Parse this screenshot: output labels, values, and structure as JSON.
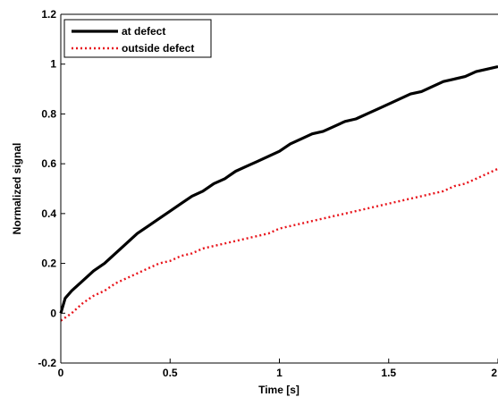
{
  "chart_data": {
    "type": "line",
    "title": "",
    "xlabel": "Time [s]",
    "ylabel": "Normalized signal",
    "xlim": [
      0,
      2
    ],
    "ylim": [
      -0.2,
      1.2
    ],
    "xticks": [
      0,
      0.5,
      1,
      1.5,
      2
    ],
    "xtick_labels": [
      "0",
      "0.5",
      "1",
      "1.5",
      "2"
    ],
    "yticks": [
      -0.2,
      0,
      0.2,
      0.4,
      0.6,
      0.8,
      1,
      1.2
    ],
    "ytick_labels": [
      "-0.2",
      "0",
      "0.2",
      "0.4",
      "0.6",
      "0.8",
      "1",
      "1.2"
    ],
    "grid": false,
    "legend_position": "top-left",
    "series": [
      {
        "name": "at defect",
        "color": "#000000",
        "style": "solid",
        "x": [
          0,
          0.02,
          0.05,
          0.1,
          0.15,
          0.2,
          0.25,
          0.3,
          0.35,
          0.4,
          0.45,
          0.5,
          0.55,
          0.6,
          0.65,
          0.7,
          0.75,
          0.8,
          0.85,
          0.9,
          0.95,
          1.0,
          1.05,
          1.1,
          1.15,
          1.2,
          1.25,
          1.3,
          1.35,
          1.4,
          1.45,
          1.5,
          1.55,
          1.6,
          1.65,
          1.7,
          1.75,
          1.8,
          1.85,
          1.9,
          1.95,
          2.0
        ],
        "y": [
          0,
          0.06,
          0.09,
          0.13,
          0.17,
          0.2,
          0.24,
          0.28,
          0.32,
          0.35,
          0.38,
          0.41,
          0.44,
          0.47,
          0.49,
          0.52,
          0.54,
          0.57,
          0.59,
          0.61,
          0.63,
          0.65,
          0.68,
          0.7,
          0.72,
          0.73,
          0.75,
          0.77,
          0.78,
          0.8,
          0.82,
          0.84,
          0.86,
          0.88,
          0.89,
          0.91,
          0.93,
          0.94,
          0.95,
          0.97,
          0.98,
          0.99
        ]
      },
      {
        "name": "outside defect",
        "color": "#e8141b",
        "style": "dotted",
        "x": [
          0,
          0.05,
          0.1,
          0.15,
          0.2,
          0.25,
          0.3,
          0.35,
          0.4,
          0.45,
          0.5,
          0.55,
          0.6,
          0.65,
          0.7,
          0.75,
          0.8,
          0.85,
          0.9,
          0.95,
          1.0,
          1.05,
          1.1,
          1.15,
          1.2,
          1.25,
          1.3,
          1.35,
          1.4,
          1.45,
          1.5,
          1.55,
          1.6,
          1.65,
          1.7,
          1.75,
          1.8,
          1.85,
          1.9,
          1.95,
          2.0
        ],
        "y": [
          -0.03,
          0.0,
          0.04,
          0.07,
          0.09,
          0.12,
          0.14,
          0.16,
          0.18,
          0.2,
          0.21,
          0.23,
          0.24,
          0.26,
          0.27,
          0.28,
          0.29,
          0.3,
          0.31,
          0.32,
          0.34,
          0.35,
          0.36,
          0.37,
          0.38,
          0.39,
          0.4,
          0.41,
          0.42,
          0.43,
          0.44,
          0.45,
          0.46,
          0.47,
          0.48,
          0.49,
          0.51,
          0.52,
          0.54,
          0.56,
          0.58
        ]
      }
    ]
  }
}
